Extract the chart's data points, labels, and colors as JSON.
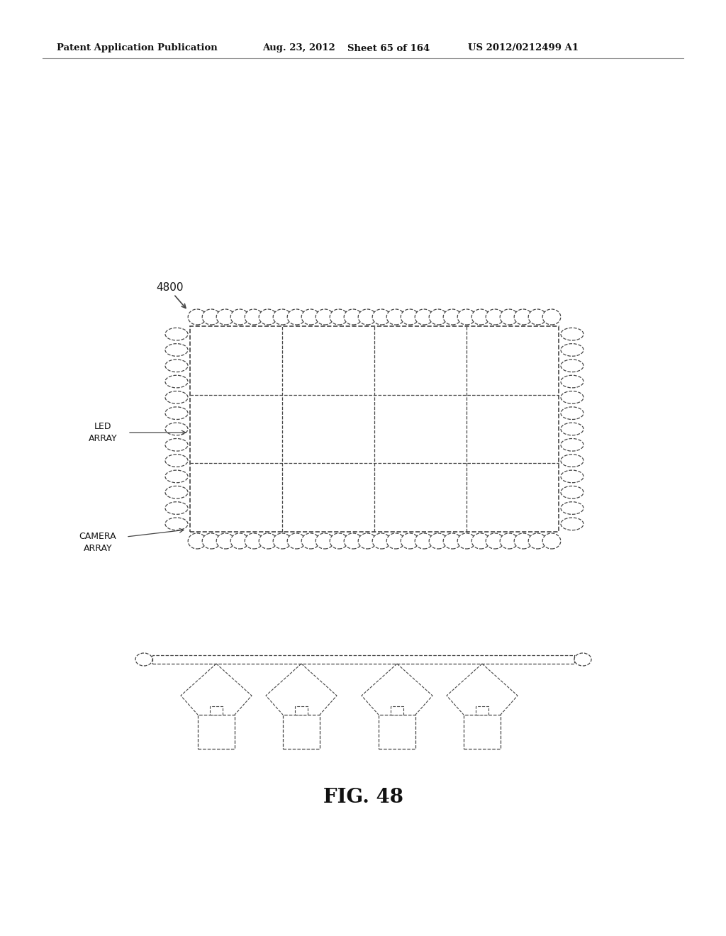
{
  "bg_color": "#ffffff",
  "header_text": "Patent Application Publication",
  "header_date": "Aug. 23, 2012",
  "header_sheet": "Sheet 65 of 164",
  "header_patent": "US 2012/0212499 A1",
  "fig_label": "FIG. 48",
  "label_4800": "4800",
  "label_led": "LED\nARRAY",
  "label_camera": "CAMERA\nARRAY",
  "line_color": "#444444",
  "oval_color": "#ffffff",
  "oval_edge": "#444444"
}
